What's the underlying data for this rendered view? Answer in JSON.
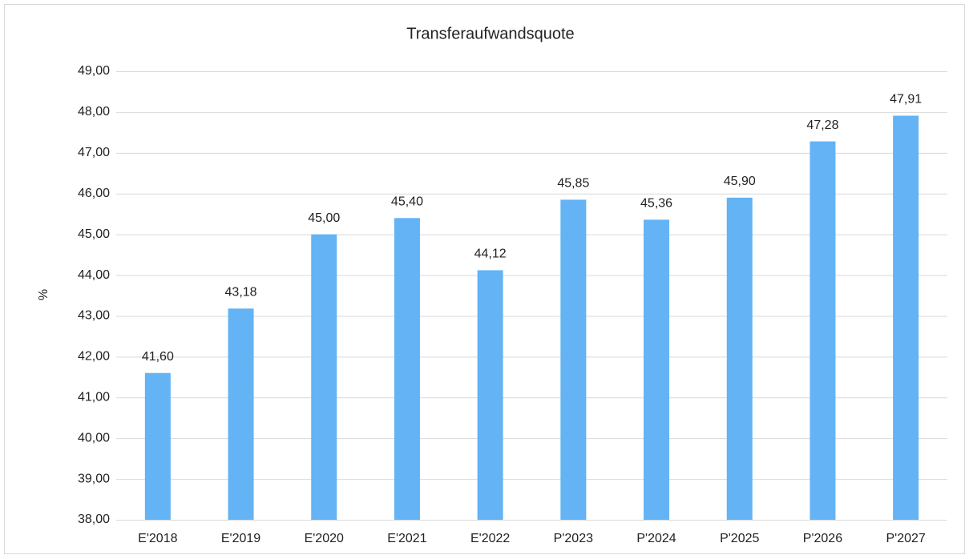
{
  "chart_data": {
    "type": "bar",
    "title": "Transferaufwandsquote",
    "y_label": "%",
    "categories": [
      "E'2018",
      "E'2019",
      "E'2020",
      "E'2021",
      "E'2022",
      "P'2023",
      "P'2024",
      "P'2025",
      "P'2026",
      "P'2027"
    ],
    "values": [
      41.6,
      43.18,
      45.0,
      45.4,
      44.12,
      45.85,
      45.36,
      45.9,
      47.28,
      47.91
    ],
    "value_labels": [
      "41,60",
      "43,18",
      "45,00",
      "45,40",
      "44,12",
      "45,85",
      "45,36",
      "45,90",
      "47,28",
      "47,91"
    ],
    "color": "#63b3f5",
    "ylim": [
      38,
      49
    ],
    "yticks": [
      {
        "value": 38,
        "label": "38,00"
      },
      {
        "value": 39,
        "label": "39,00"
      },
      {
        "value": 40,
        "label": "40,00"
      },
      {
        "value": 41,
        "label": "41,00"
      },
      {
        "value": 42,
        "label": "42,00"
      },
      {
        "value": 43,
        "label": "43,00"
      },
      {
        "value": 44,
        "label": "44,00"
      },
      {
        "value": 45,
        "label": "45,00"
      },
      {
        "value": 46,
        "label": "46,00"
      },
      {
        "value": 47,
        "label": "47,00"
      },
      {
        "value": 48,
        "label": "48,00"
      },
      {
        "value": 49,
        "label": "49,00"
      }
    ],
    "grid": true
  }
}
